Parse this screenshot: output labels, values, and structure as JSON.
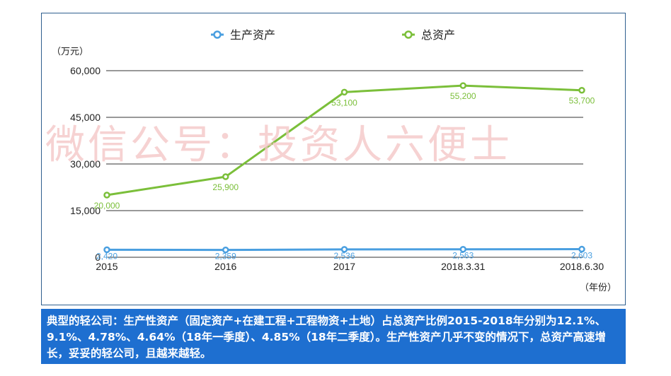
{
  "chart_data": {
    "type": "line",
    "unit_label": "（万元）",
    "x_axis_label": "（年份）",
    "categories": [
      "2015",
      "2016",
      "2017",
      "2018.3.31",
      "2018.6.30"
    ],
    "ylim": [
      0,
      60000
    ],
    "yticks": [
      "0",
      "15,000",
      "30,000",
      "45,000",
      "60,000"
    ],
    "ytick_values": [
      0,
      15000,
      30000,
      45000,
      60000
    ],
    "grid": true,
    "legend_position": "top",
    "series": [
      {
        "name": "生产资产",
        "color": "#4a9fe0",
        "values": [
          2420,
          2359,
          2536,
          2563,
          2603
        ],
        "labels": [
          "2,420",
          "2,359",
          "2,536",
          "2,563",
          "2,603"
        ]
      },
      {
        "name": "总资产",
        "color": "#7bbf3a",
        "values": [
          20000,
          25900,
          53100,
          55200,
          53700
        ],
        "labels": [
          "20,000",
          "25,900",
          "53,100",
          "55,200",
          "53,700"
        ]
      }
    ]
  },
  "watermark": "微信公号：投资人六便士",
  "caption": "典型的轻公司：生产性资产（固定资产+在建工程+工程物资+土地）占总资产比例2015-2018年分别为12.1%、9.1%、4.78%、4.64%（18年一季度）、4.85%（18年二季度）。生产性资产几乎不变的情况下，总资产高速增长，妥妥的轻公司，且越来越轻。"
}
